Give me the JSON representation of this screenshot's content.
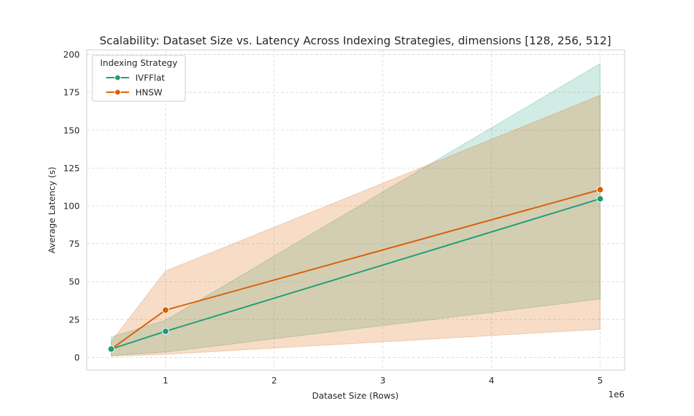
{
  "chart_data": {
    "type": "line",
    "title": "Scalability: Dataset Size vs. Latency Across Indexing Strategies, dimensions [128, 256, 512]",
    "xlabel": "Dataset Size (Rows)",
    "ylabel": "Average Latency (s)",
    "x_offset_label": "1e6",
    "x_ticks": [
      1,
      2,
      3,
      4,
      5
    ],
    "y_ticks": [
      0,
      25,
      50,
      75,
      100,
      125,
      150,
      175,
      200
    ],
    "xlim": [
      0.275,
      5.225
    ],
    "ylim": [
      -8.5,
      203
    ],
    "grid": true,
    "legend": {
      "title": "Indexing Strategy",
      "placement": "top-left"
    },
    "x": [
      0.5,
      1,
      5
    ],
    "series": [
      {
        "name": "IVFFlat",
        "color": "#1b9e77",
        "values": [
          5.5,
          17.2,
          104.7
        ],
        "lower": [
          1.2,
          3.5,
          38.5
        ],
        "upper": [
          13.5,
          24.5,
          194
        ]
      },
      {
        "name": "HNSW",
        "color": "#d95f02",
        "values": [
          5.5,
          31.2,
          110.7
        ],
        "lower": [
          0.8,
          2.0,
          18.5
        ],
        "upper": [
          10.5,
          57.0,
          173
        ]
      }
    ]
  }
}
